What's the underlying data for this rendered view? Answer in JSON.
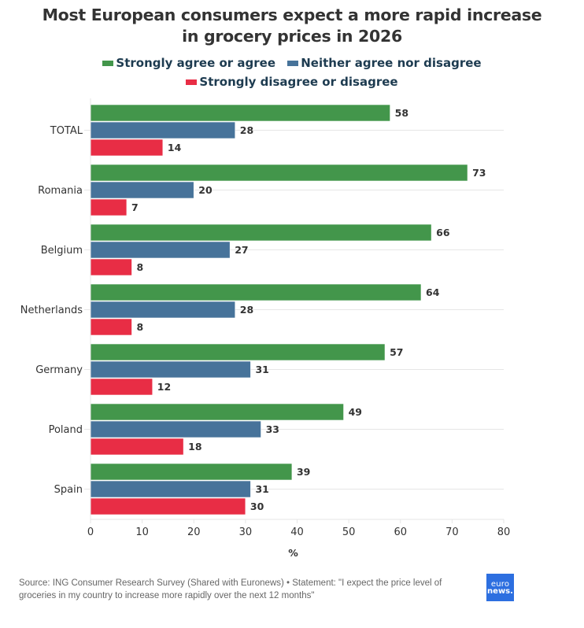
{
  "header": {
    "title_line1": "Most European consumers expect a more rapid increase",
    "title_line2": "in grocery prices in 2026"
  },
  "legend": [
    {
      "label": "Strongly agree or agree",
      "color": "#43964b"
    },
    {
      "label": "Neither agree nor disagree",
      "color": "#47739a"
    },
    {
      "label": "Strongly disagree or disagree",
      "color": "#e82d45"
    }
  ],
  "footer": {
    "source": "Source: ING Consumer Research Survey (Shared with Euronews) • Statement: \"I expect the price level of groceries in my country to increase more rapidly over the next 12 months\"",
    "logo_line1": "euro",
    "logo_line2": "news."
  },
  "chart_data": {
    "type": "bar",
    "orientation": "horizontal",
    "title": "Most European consumers expect a more rapid increase in grocery prices in 2026",
    "categories": [
      "TOTAL",
      "Romania",
      "Belgium",
      "Netherlands",
      "Germany",
      "Poland",
      "Spain"
    ],
    "series": [
      {
        "name": "Strongly agree or agree",
        "color": "#43964b",
        "values": [
          58,
          73,
          66,
          64,
          57,
          49,
          39
        ]
      },
      {
        "name": "Neither agree nor disagree",
        "color": "#47739a",
        "values": [
          28,
          20,
          27,
          28,
          31,
          33,
          31
        ]
      },
      {
        "name": "Strongly disagree or disagree",
        "color": "#e82d45",
        "values": [
          14,
          7,
          8,
          8,
          12,
          18,
          30
        ]
      }
    ],
    "xlabel": "%",
    "ylabel": "",
    "xlim": [
      0,
      80
    ],
    "xticks": [
      0,
      10,
      20,
      30,
      40,
      50,
      60,
      70,
      80
    ],
    "grid": "horizontal",
    "legend_position": "top-center",
    "data_labels": true
  }
}
